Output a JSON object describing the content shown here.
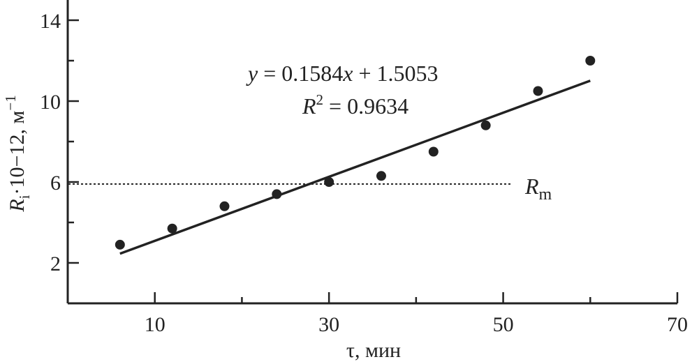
{
  "chart_data": {
    "type": "scatter",
    "xlabel": "τ, мин",
    "ylabel": {
      "prefix": "R",
      "prefix_sub": "i",
      "middle": "·10",
      "exp": "−12",
      "unit": ", м",
      "unit_sup": "−1"
    },
    "xlim": [
      0,
      70
    ],
    "ylim": [
      0,
      15
    ],
    "x_ticks": [
      10,
      30,
      50,
      70
    ],
    "x_minor_ticks": [
      20,
      40,
      60
    ],
    "y_ticks": [
      2,
      6,
      10,
      14
    ],
    "y_minor_ticks": [
      4,
      8,
      12
    ],
    "grid": false,
    "series": [
      {
        "points": [
          {
            "x": 6,
            "y": 2.9
          },
          {
            "x": 12,
            "y": 3.7
          },
          {
            "x": 18,
            "y": 4.8
          },
          {
            "x": 24,
            "y": 5.4
          },
          {
            "x": 30,
            "y": 6.0
          },
          {
            "x": 36,
            "y": 6.3
          },
          {
            "x": 42,
            "y": 7.5
          },
          {
            "x": 48,
            "y": 8.8
          },
          {
            "x": 54,
            "y": 10.5
          },
          {
            "x": 60,
            "y": 12.0
          }
        ]
      }
    ],
    "trendline": {
      "slope": 0.1584,
      "intercept": 1.5053,
      "x_range": [
        6,
        60
      ],
      "equation": {
        "y": "y",
        "eq": " = 0.1584",
        "x": "x",
        "rest": " + 1.5053"
      },
      "r2": {
        "r": "R",
        "sup": "2",
        "rest": " = 0.9634"
      }
    },
    "reference_line": {
      "y": 5.9,
      "x_range": [
        0,
        51
      ],
      "style": "dotted",
      "label": "R",
      "label_sub": "m"
    },
    "colors": {
      "marks": "#222222",
      "axes": "#222222",
      "background": "#ffffff"
    }
  }
}
